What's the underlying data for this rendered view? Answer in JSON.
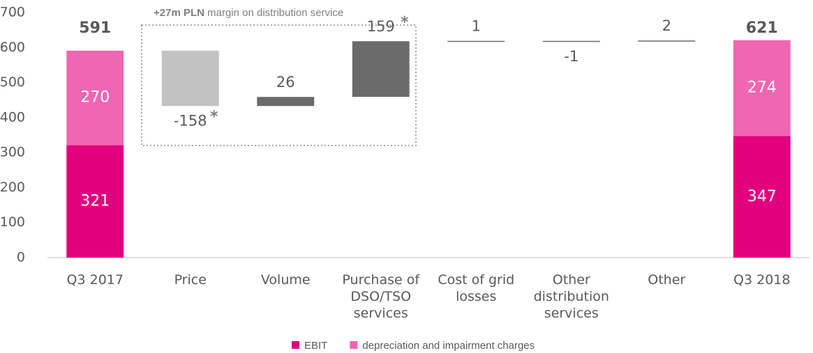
{
  "chart_data": {
    "type": "waterfall",
    "categories": [
      "Q3 2017",
      "Price",
      "Volume",
      "Purchase of\nDSO/TSO\nservices",
      "Cost of grid\nlosses",
      "Other\ndistribution\nservices",
      "Other",
      "Q3 2018"
    ],
    "series": [
      {
        "name": "EBIT",
        "color": "#e3007e",
        "values": [
          321,
          null,
          null,
          null,
          null,
          null,
          null,
          347
        ]
      },
      {
        "name": "depreciation and impairment charges",
        "color": "#ef66b3",
        "values": [
          270,
          null,
          null,
          null,
          null,
          null,
          null,
          274
        ]
      }
    ],
    "totals": [
      591,
      null,
      null,
      null,
      null,
      null,
      null,
      621
    ],
    "changes": [
      null,
      -158,
      26,
      159,
      1,
      -1,
      2,
      null
    ],
    "change_colors": [
      null,
      "#c2c2c2",
      "#6b6b6b",
      "#6b6b6b",
      "#6b6b6b",
      "#6b6b6b",
      "#6b6b6b",
      null
    ],
    "change_notes": [
      null,
      "*",
      null,
      "*",
      null,
      null,
      null,
      null
    ],
    "annotation": {
      "bold": "+27m PLN",
      "text": "margin on distribution service"
    },
    "ylim": [
      0,
      700
    ],
    "yticks": [
      0,
      100,
      200,
      300,
      400,
      500,
      600,
      700
    ],
    "legend": "bottom"
  }
}
